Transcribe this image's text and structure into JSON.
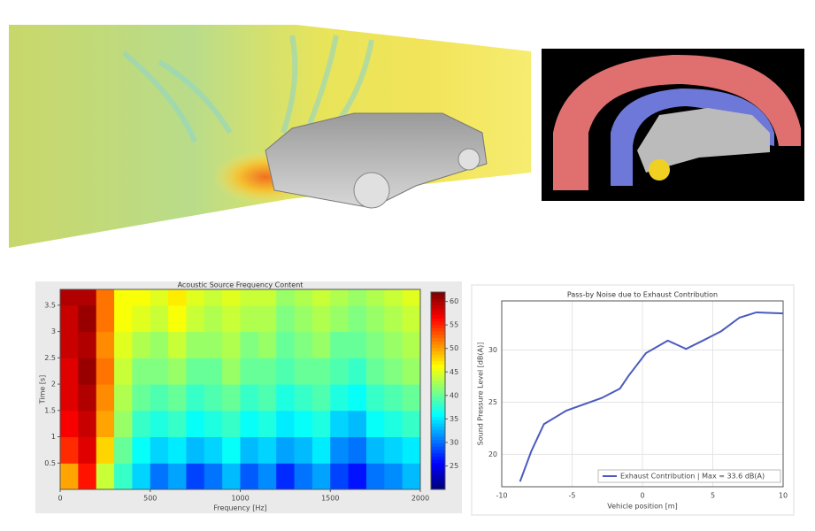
{
  "chart_data": [
    {
      "type": "heatmap",
      "title": "Acoustic Source Frequency Content",
      "x_label": "Frequency [Hz]",
      "y_label": "Time [s]",
      "xlim": [
        0,
        2000
      ],
      "xticks": [
        0,
        500,
        1000,
        1500,
        2000
      ],
      "ylim": [
        0,
        3.8
      ],
      "yticks": [
        0.5,
        1.0,
        1.5,
        2.0,
        2.5,
        3.0,
        3.5
      ],
      "clim": [
        20,
        62
      ],
      "cticks": [
        25,
        30,
        35,
        40,
        45,
        50,
        55,
        60
      ],
      "xbins": [
        0,
        100,
        200,
        300,
        400,
        500,
        600,
        700,
        800,
        900,
        1000,
        1100,
        1200,
        1300,
        1400,
        1500,
        1600,
        1700,
        1800,
        1900,
        2000
      ],
      "ybins": [
        0,
        0.5,
        1.0,
        1.5,
        2.0,
        2.5,
        3.0,
        3.5,
        3.8
      ],
      "z": [
        [
          50,
          56,
          44,
          38,
          34,
          30,
          32,
          28,
          30,
          33,
          29,
          31,
          27,
          30,
          32,
          28,
          26,
          30,
          31,
          33
        ],
        [
          55,
          58,
          48,
          40,
          36,
          34,
          35,
          33,
          34,
          36,
          33,
          34,
          32,
          33,
          35,
          31,
          30,
          33,
          34,
          35
        ],
        [
          57,
          59,
          50,
          42,
          38,
          37,
          38,
          36,
          37,
          38,
          36,
          37,
          35,
          36,
          37,
          34,
          33,
          36,
          37,
          38
        ],
        [
          58,
          60,
          51,
          43,
          40,
          39,
          40,
          38,
          39,
          40,
          38,
          39,
          37,
          38,
          39,
          37,
          36,
          38,
          39,
          40
        ],
        [
          58,
          61,
          52,
          44,
          41,
          41,
          42,
          40,
          40,
          42,
          40,
          40,
          39,
          40,
          40,
          39,
          38,
          40,
          41,
          42
        ],
        [
          59,
          60,
          51,
          45,
          43,
          42,
          44,
          42,
          42,
          43,
          41,
          42,
          40,
          41,
          42,
          40,
          40,
          41,
          42,
          43
        ],
        [
          59,
          61,
          52,
          46,
          45,
          44,
          46,
          44,
          43,
          44,
          43,
          43,
          41,
          42,
          43,
          42,
          41,
          42,
          43,
          44
        ],
        [
          60,
          60,
          52,
          46,
          46,
          45,
          47,
          45,
          44,
          45,
          44,
          44,
          42,
          43,
          44,
          43,
          42,
          43,
          44,
          45
        ]
      ]
    },
    {
      "type": "line",
      "title": "Pass-by Noise due to Exhaust Contribution",
      "x_label": "Vehicle position [m]",
      "y_label": "Sound Pressure Level [dB(A)]",
      "xlim": [
        -10,
        10
      ],
      "xticks": [
        -10,
        -5,
        0,
        5,
        10
      ],
      "ylim": [
        16.9,
        34.7
      ],
      "yticks": [
        20,
        25,
        30
      ],
      "grid": true,
      "x": [
        -8.7,
        -7.9,
        -7.0,
        -5.4,
        -2.9,
        -1.6,
        -1.0,
        0.25,
        1.8,
        3.1,
        4.3,
        5.6,
        6.9,
        8.1,
        10
      ],
      "series": [
        {
          "name": "Exhaust Contribution | Max = 33.6 dB(A)",
          "color": "#4a5bbf",
          "values": [
            17.4,
            20.3,
            22.9,
            24.2,
            25.4,
            26.3,
            27.5,
            29.7,
            30.9,
            30.1,
            30.9,
            31.8,
            33.1,
            33.6,
            33.5
          ]
        }
      ]
    }
  ]
}
